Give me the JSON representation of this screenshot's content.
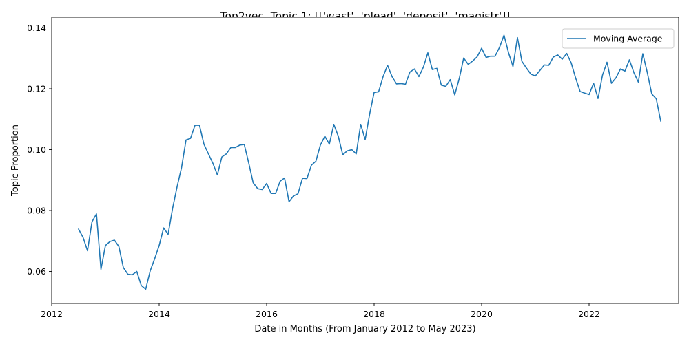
{
  "chart_data": {
    "type": "line",
    "title": "Top2vec, Topic 1: [['wast', 'plead', 'deposit', 'magistr']]",
    "xlabel": "Date in Months (From January 2012 to May 2023)",
    "ylabel": "Topic Proportion",
    "xlim": [
      "2012-01",
      "2023-09"
    ],
    "ylim": [
      0.0495,
      0.1435
    ],
    "x_ticks": [
      "2012",
      "2014",
      "2016",
      "2018",
      "2020",
      "2022"
    ],
    "y_ticks": [
      "0.06",
      "0.08",
      "0.10",
      "0.12",
      "0.14"
    ],
    "grid": false,
    "legend_position": "top-right",
    "line_color": "#1f77b4",
    "series": [
      {
        "name": "Moving Average",
        "x": [
          "2012-07",
          "2012-08",
          "2012-09",
          "2012-10",
          "2012-11",
          "2012-12",
          "2013-01",
          "2013-02",
          "2013-03",
          "2013-04",
          "2013-05",
          "2013-06",
          "2013-07",
          "2013-08",
          "2013-09",
          "2013-10",
          "2013-11",
          "2013-12",
          "2014-01",
          "2014-02",
          "2014-03",
          "2014-04",
          "2014-05",
          "2014-06",
          "2014-07",
          "2014-08",
          "2014-09",
          "2014-10",
          "2014-11",
          "2014-12",
          "2015-01",
          "2015-02",
          "2015-03",
          "2015-04",
          "2015-05",
          "2015-06",
          "2015-07",
          "2015-08",
          "2015-09",
          "2015-10",
          "2015-11",
          "2015-12",
          "2016-01",
          "2016-02",
          "2016-03",
          "2016-04",
          "2016-05",
          "2016-06",
          "2016-07",
          "2016-08",
          "2016-09",
          "2016-10",
          "2016-11",
          "2016-12",
          "2017-01",
          "2017-02",
          "2017-03",
          "2017-04",
          "2017-05",
          "2017-06",
          "2017-07",
          "2017-08",
          "2017-09",
          "2017-10",
          "2017-11",
          "2017-12",
          "2018-01",
          "2018-02",
          "2018-03",
          "2018-04",
          "2018-05",
          "2018-06",
          "2018-07",
          "2018-08",
          "2018-09",
          "2018-10",
          "2018-11",
          "2018-12",
          "2019-01",
          "2019-02",
          "2019-03",
          "2019-04",
          "2019-05",
          "2019-06",
          "2019-07",
          "2019-08",
          "2019-09",
          "2019-10",
          "2019-11",
          "2019-12",
          "2020-01",
          "2020-02",
          "2020-03",
          "2020-04",
          "2020-05",
          "2020-06",
          "2020-07",
          "2020-08",
          "2020-09",
          "2020-10",
          "2020-11",
          "2020-12",
          "2021-01",
          "2021-02",
          "2021-03",
          "2021-04",
          "2021-05",
          "2021-06",
          "2021-07",
          "2021-08",
          "2021-09",
          "2021-10",
          "2021-11",
          "2021-12",
          "2022-01",
          "2022-02",
          "2022-03",
          "2022-04",
          "2022-05",
          "2022-06",
          "2022-07",
          "2022-08",
          "2022-09",
          "2022-10",
          "2022-11",
          "2022-12",
          "2023-01",
          "2023-02",
          "2023-03",
          "2023-04",
          "2023-05"
        ],
        "values": [
          0.0739,
          0.0712,
          0.0668,
          0.0763,
          0.0789,
          0.0607,
          0.0685,
          0.0698,
          0.0703,
          0.0682,
          0.0613,
          0.0591,
          0.0589,
          0.06,
          0.0554,
          0.0542,
          0.0602,
          0.0642,
          0.0685,
          0.0743,
          0.0722,
          0.0807,
          0.0878,
          0.0941,
          0.1032,
          0.1037,
          0.108,
          0.108,
          0.1018,
          0.0986,
          0.0955,
          0.0917,
          0.0976,
          0.0986,
          0.1007,
          0.1007,
          0.1015,
          0.1017,
          0.0956,
          0.0891,
          0.0872,
          0.0869,
          0.0889,
          0.0856,
          0.0856,
          0.0896,
          0.0907,
          0.0829,
          0.0848,
          0.0855,
          0.0906,
          0.0905,
          0.0949,
          0.0962,
          0.1015,
          0.1044,
          0.1018,
          0.1083,
          0.1044,
          0.0983,
          0.0996,
          0.1,
          0.0986,
          0.1083,
          0.1033,
          0.1117,
          0.1188,
          0.119,
          0.124,
          0.1277,
          0.124,
          0.1216,
          0.1217,
          0.1215,
          0.1255,
          0.1265,
          0.124,
          0.1271,
          0.1318,
          0.1263,
          0.1267,
          0.1212,
          0.1208,
          0.123,
          0.118,
          0.1233,
          0.1301,
          0.128,
          0.1291,
          0.1305,
          0.1333,
          0.1303,
          0.1307,
          0.1307,
          0.1336,
          0.1376,
          0.1319,
          0.1273,
          0.1368,
          0.129,
          0.1268,
          0.1248,
          0.1242,
          0.126,
          0.1278,
          0.1277,
          0.1304,
          0.1311,
          0.1297,
          0.1316,
          0.1285,
          0.1235,
          0.1191,
          0.1186,
          0.1181,
          0.1218,
          0.1168,
          0.1245,
          0.1287,
          0.1218,
          0.1236,
          0.1265,
          0.1258,
          0.1295,
          0.1253,
          0.1222,
          0.1315,
          0.1253,
          0.1183,
          0.1167,
          0.1094
        ]
      }
    ]
  }
}
